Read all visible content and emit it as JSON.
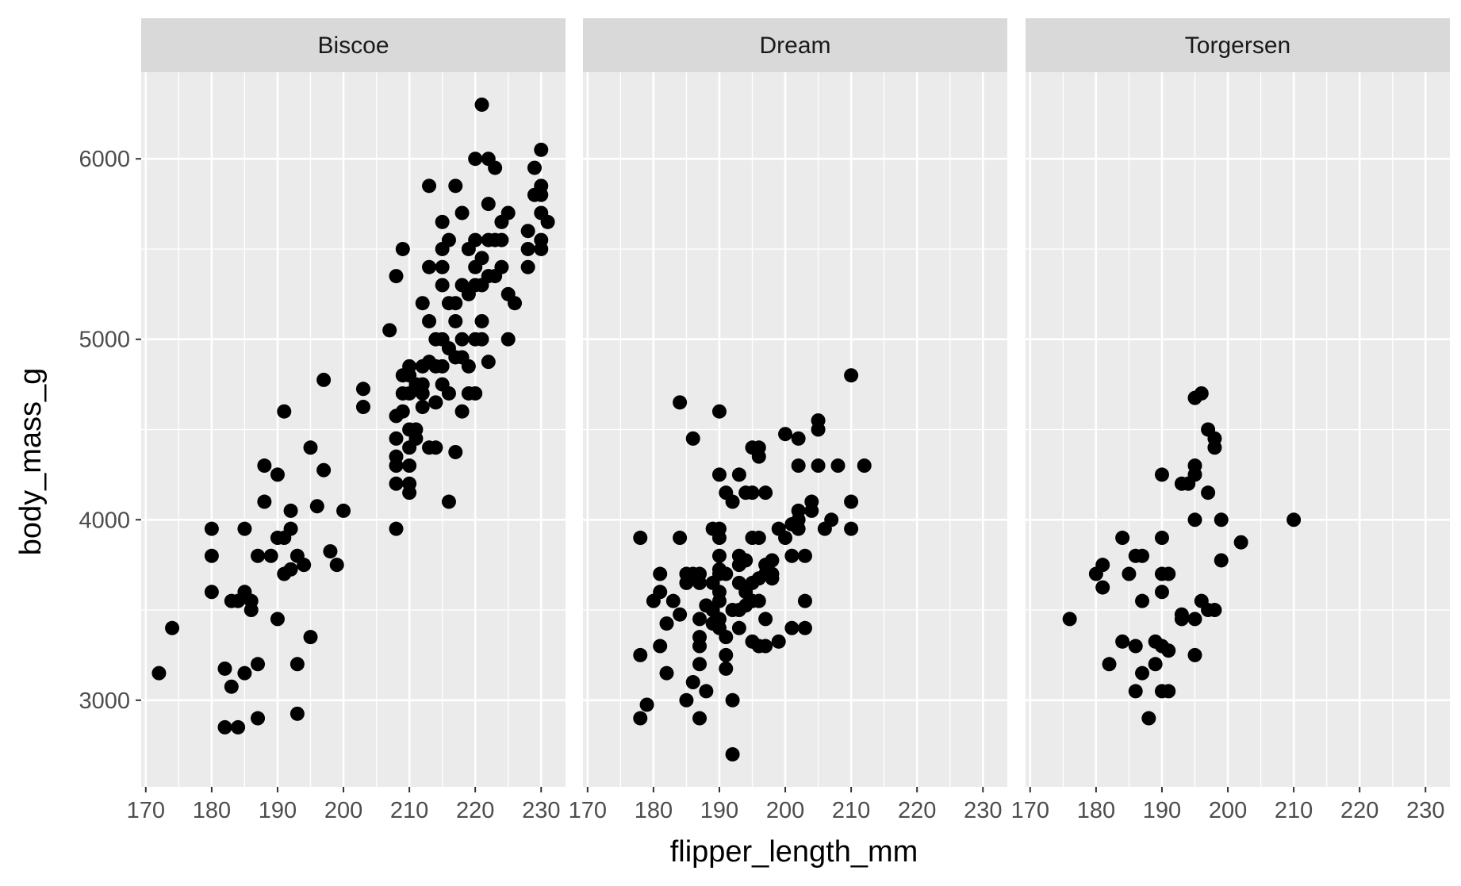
{
  "chart_data": {
    "type": "scatter",
    "xlabel": "flipper_length_mm",
    "ylabel": "body_mass_g",
    "xlim": [
      169.3,
      233.7
    ],
    "ylim": [
      2520,
      6480
    ],
    "x_ticks": [
      170,
      180,
      190,
      200,
      210,
      220,
      230
    ],
    "y_ticks": [
      3000,
      4000,
      5000,
      6000
    ],
    "grid": true,
    "legend": "none",
    "colors": {
      "panel_background": "#ebebeb",
      "grid": "#ffffff",
      "strip_background": "#d9d9d9",
      "point": "#000000"
    },
    "facets": [
      {
        "name": "Biscoe",
        "points": [
          [
            172,
            3150
          ],
          [
            174,
            3400
          ],
          [
            180,
            3950
          ],
          [
            180,
            3800
          ],
          [
            180,
            3600
          ],
          [
            182,
            3175
          ],
          [
            182,
            2850
          ],
          [
            183,
            3550
          ],
          [
            183,
            3075
          ],
          [
            184,
            2850
          ],
          [
            184,
            3550
          ],
          [
            185,
            3950
          ],
          [
            185,
            3600
          ],
          [
            185,
            3150
          ],
          [
            186,
            3550
          ],
          [
            186,
            3500
          ],
          [
            187,
            3800
          ],
          [
            187,
            3200
          ],
          [
            187,
            2900
          ],
          [
            188,
            4300
          ],
          [
            188,
            4100
          ],
          [
            189,
            3800
          ],
          [
            190,
            4250
          ],
          [
            190,
            3900
          ],
          [
            190,
            3450
          ],
          [
            191,
            4600
          ],
          [
            191,
            3900
          ],
          [
            191,
            3700
          ],
          [
            192,
            4050
          ],
          [
            192,
            3950
          ],
          [
            192,
            3725
          ],
          [
            193,
            3800
          ],
          [
            193,
            3200
          ],
          [
            193,
            2925
          ],
          [
            194,
            3750
          ],
          [
            195,
            4400
          ],
          [
            195,
            3350
          ],
          [
            196,
            4075
          ],
          [
            197,
            4775
          ],
          [
            197,
            4275
          ],
          [
            198,
            3825
          ],
          [
            199,
            3750
          ],
          [
            200,
            4050
          ],
          [
            203,
            4725
          ],
          [
            203,
            4625
          ],
          [
            207,
            5050
          ],
          [
            208,
            5350
          ],
          [
            208,
            4575
          ],
          [
            208,
            4450
          ],
          [
            208,
            4350
          ],
          [
            208,
            4300
          ],
          [
            208,
            4200
          ],
          [
            208,
            3950
          ],
          [
            209,
            5500
          ],
          [
            209,
            4800
          ],
          [
            209,
            4700
          ],
          [
            209,
            4600
          ],
          [
            210,
            4850
          ],
          [
            210,
            4800
          ],
          [
            210,
            4700
          ],
          [
            210,
            4500
          ],
          [
            210,
            4400
          ],
          [
            210,
            4300
          ],
          [
            210,
            4200
          ],
          [
            210,
            4150
          ],
          [
            211,
            4750
          ],
          [
            211,
            4500
          ],
          [
            211,
            4450
          ],
          [
            212,
            5200
          ],
          [
            212,
            4850
          ],
          [
            212,
            4750
          ],
          [
            212,
            4700
          ],
          [
            212,
            4625
          ],
          [
            213,
            5850
          ],
          [
            213,
            5400
          ],
          [
            213,
            5100
          ],
          [
            213,
            4875
          ],
          [
            213,
            4400
          ],
          [
            214,
            5000
          ],
          [
            214,
            4850
          ],
          [
            214,
            4650
          ],
          [
            214,
            4400
          ],
          [
            215,
            5650
          ],
          [
            215,
            5500
          ],
          [
            215,
            5400
          ],
          [
            215,
            5300
          ],
          [
            215,
            5000
          ],
          [
            215,
            4850
          ],
          [
            215,
            4750
          ],
          [
            216,
            5550
          ],
          [
            216,
            5200
          ],
          [
            216,
            4950
          ],
          [
            216,
            4700
          ],
          [
            216,
            4100
          ],
          [
            217,
            5850
          ],
          [
            217,
            5200
          ],
          [
            217,
            5100
          ],
          [
            217,
            4900
          ],
          [
            217,
            4375
          ],
          [
            218,
            5700
          ],
          [
            218,
            5300
          ],
          [
            218,
            5000
          ],
          [
            218,
            4900
          ],
          [
            218,
            4600
          ],
          [
            219,
            5500
          ],
          [
            219,
            5250
          ],
          [
            219,
            4850
          ],
          [
            219,
            4700
          ],
          [
            220,
            6000
          ],
          [
            220,
            5550
          ],
          [
            220,
            5400
          ],
          [
            220,
            5300
          ],
          [
            220,
            5000
          ],
          [
            220,
            4700
          ],
          [
            221,
            6300
          ],
          [
            221,
            5450
          ],
          [
            221,
            5300
          ],
          [
            221,
            5100
          ],
          [
            221,
            5000
          ],
          [
            222,
            6000
          ],
          [
            222,
            5750
          ],
          [
            222,
            5550
          ],
          [
            222,
            5350
          ],
          [
            222,
            4875
          ],
          [
            223,
            5950
          ],
          [
            223,
            5550
          ],
          [
            223,
            5350
          ],
          [
            224,
            5650
          ],
          [
            224,
            5550
          ],
          [
            224,
            5400
          ],
          [
            225,
            5700
          ],
          [
            225,
            5250
          ],
          [
            225,
            5000
          ],
          [
            226,
            5200
          ],
          [
            228,
            5600
          ],
          [
            228,
            5500
          ],
          [
            228,
            5400
          ],
          [
            229,
            5950
          ],
          [
            229,
            5800
          ],
          [
            230,
            6050
          ],
          [
            230,
            5850
          ],
          [
            230,
            5800
          ],
          [
            230,
            5700
          ],
          [
            230,
            5550
          ],
          [
            230,
            5500
          ],
          [
            231,
            5650
          ]
        ]
      },
      {
        "name": "Dream",
        "points": [
          [
            178,
            3900
          ],
          [
            178,
            3250
          ],
          [
            178,
            2900
          ],
          [
            179,
            2975
          ],
          [
            180,
            3550
          ],
          [
            181,
            3700
          ],
          [
            181,
            3600
          ],
          [
            181,
            3300
          ],
          [
            182,
            3425
          ],
          [
            182,
            3150
          ],
          [
            183,
            3550
          ],
          [
            184,
            4650
          ],
          [
            184,
            3900
          ],
          [
            184,
            3475
          ],
          [
            185,
            3700
          ],
          [
            185,
            3650
          ],
          [
            185,
            3000
          ],
          [
            186,
            4450
          ],
          [
            186,
            3700
          ],
          [
            186,
            3100
          ],
          [
            187,
            3700
          ],
          [
            187,
            3650
          ],
          [
            187,
            3450
          ],
          [
            187,
            3350
          ],
          [
            187,
            3300
          ],
          [
            187,
            3200
          ],
          [
            187,
            2900
          ],
          [
            188,
            3525
          ],
          [
            188,
            3050
          ],
          [
            189,
            3950
          ],
          [
            189,
            3650
          ],
          [
            189,
            3500
          ],
          [
            189,
            3425
          ],
          [
            190,
            4600
          ],
          [
            190,
            4250
          ],
          [
            190,
            3950
          ],
          [
            190,
            3900
          ],
          [
            190,
            3800
          ],
          [
            190,
            3725
          ],
          [
            190,
            3700
          ],
          [
            190,
            3600
          ],
          [
            190,
            3550
          ],
          [
            190,
            3450
          ],
          [
            190,
            3400
          ],
          [
            191,
            4150
          ],
          [
            191,
            3700
          ],
          [
            191,
            3350
          ],
          [
            191,
            3250
          ],
          [
            191,
            3175
          ],
          [
            192,
            4100
          ],
          [
            192,
            3500
          ],
          [
            192,
            3000
          ],
          [
            192,
            2700
          ],
          [
            193,
            4250
          ],
          [
            193,
            3800
          ],
          [
            193,
            3750
          ],
          [
            193,
            3650
          ],
          [
            193,
            3500
          ],
          [
            193,
            3400
          ],
          [
            194,
            4150
          ],
          [
            194,
            3775
          ],
          [
            194,
            3600
          ],
          [
            194,
            3525
          ],
          [
            195,
            4400
          ],
          [
            195,
            4150
          ],
          [
            195,
            3900
          ],
          [
            195,
            3650
          ],
          [
            195,
            3550
          ],
          [
            195,
            3325
          ],
          [
            196,
            4400
          ],
          [
            196,
            4350
          ],
          [
            196,
            3900
          ],
          [
            196,
            3675
          ],
          [
            196,
            3550
          ],
          [
            196,
            3300
          ],
          [
            197,
            4150
          ],
          [
            197,
            3750
          ],
          [
            197,
            3700
          ],
          [
            197,
            3450
          ],
          [
            197,
            3300
          ],
          [
            198,
            3775
          ],
          [
            198,
            3700
          ],
          [
            198,
            3675
          ],
          [
            199,
            3950
          ],
          [
            199,
            3325
          ],
          [
            200,
            4475
          ],
          [
            200,
            3900
          ],
          [
            201,
            3975
          ],
          [
            201,
            3800
          ],
          [
            201,
            3400
          ],
          [
            202,
            4450
          ],
          [
            202,
            4300
          ],
          [
            202,
            4050
          ],
          [
            202,
            4000
          ],
          [
            202,
            3950
          ],
          [
            203,
            3800
          ],
          [
            203,
            3550
          ],
          [
            203,
            3400
          ],
          [
            204,
            4100
          ],
          [
            204,
            4050
          ],
          [
            205,
            4550
          ],
          [
            205,
            4500
          ],
          [
            205,
            4300
          ],
          [
            206,
            3950
          ],
          [
            207,
            4000
          ],
          [
            208,
            4300
          ],
          [
            210,
            4800
          ],
          [
            210,
            4100
          ],
          [
            210,
            3950
          ],
          [
            212,
            4300
          ]
        ]
      },
      {
        "name": "Torgersen",
        "points": [
          [
            176,
            3450
          ],
          [
            180,
            3700
          ],
          [
            181,
            3750
          ],
          [
            181,
            3625
          ],
          [
            182,
            3200
          ],
          [
            184,
            3900
          ],
          [
            184,
            3325
          ],
          [
            185,
            3700
          ],
          [
            186,
            3800
          ],
          [
            186,
            3300
          ],
          [
            186,
            3050
          ],
          [
            187,
            3800
          ],
          [
            187,
            3550
          ],
          [
            187,
            3150
          ],
          [
            188,
            2900
          ],
          [
            189,
            3325
          ],
          [
            189,
            3200
          ],
          [
            190,
            4250
          ],
          [
            190,
            3900
          ],
          [
            190,
            3700
          ],
          [
            190,
            3600
          ],
          [
            190,
            3300
          ],
          [
            190,
            3050
          ],
          [
            191,
            3700
          ],
          [
            191,
            3275
          ],
          [
            191,
            3050
          ],
          [
            193,
            4200
          ],
          [
            193,
            3475
          ],
          [
            193,
            3450
          ],
          [
            194,
            4200
          ],
          [
            195,
            4675
          ],
          [
            195,
            4300
          ],
          [
            195,
            4250
          ],
          [
            195,
            4000
          ],
          [
            195,
            3450
          ],
          [
            195,
            3250
          ],
          [
            196,
            4700
          ],
          [
            196,
            3550
          ],
          [
            197,
            4500
          ],
          [
            197,
            4150
          ],
          [
            197,
            3500
          ],
          [
            198,
            4450
          ],
          [
            198,
            4400
          ],
          [
            198,
            3500
          ],
          [
            199,
            4000
          ],
          [
            199,
            3775
          ],
          [
            202,
            3875
          ],
          [
            210,
            4000
          ]
        ]
      }
    ]
  }
}
